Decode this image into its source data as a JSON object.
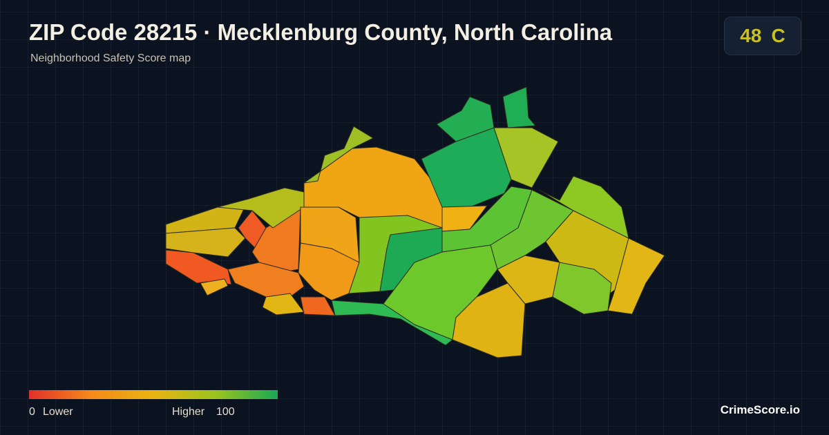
{
  "header": {
    "title": "ZIP Code 28215 · Mecklenburg County, North Carolina",
    "subtitle": "Neighborhood Safety Score map"
  },
  "badge": {
    "score": 48,
    "grade": "C"
  },
  "legend": {
    "min": 0,
    "min_label": "Lower",
    "max_label": "Higher",
    "max": 100
  },
  "brand": "CrimeScore.io"
}
